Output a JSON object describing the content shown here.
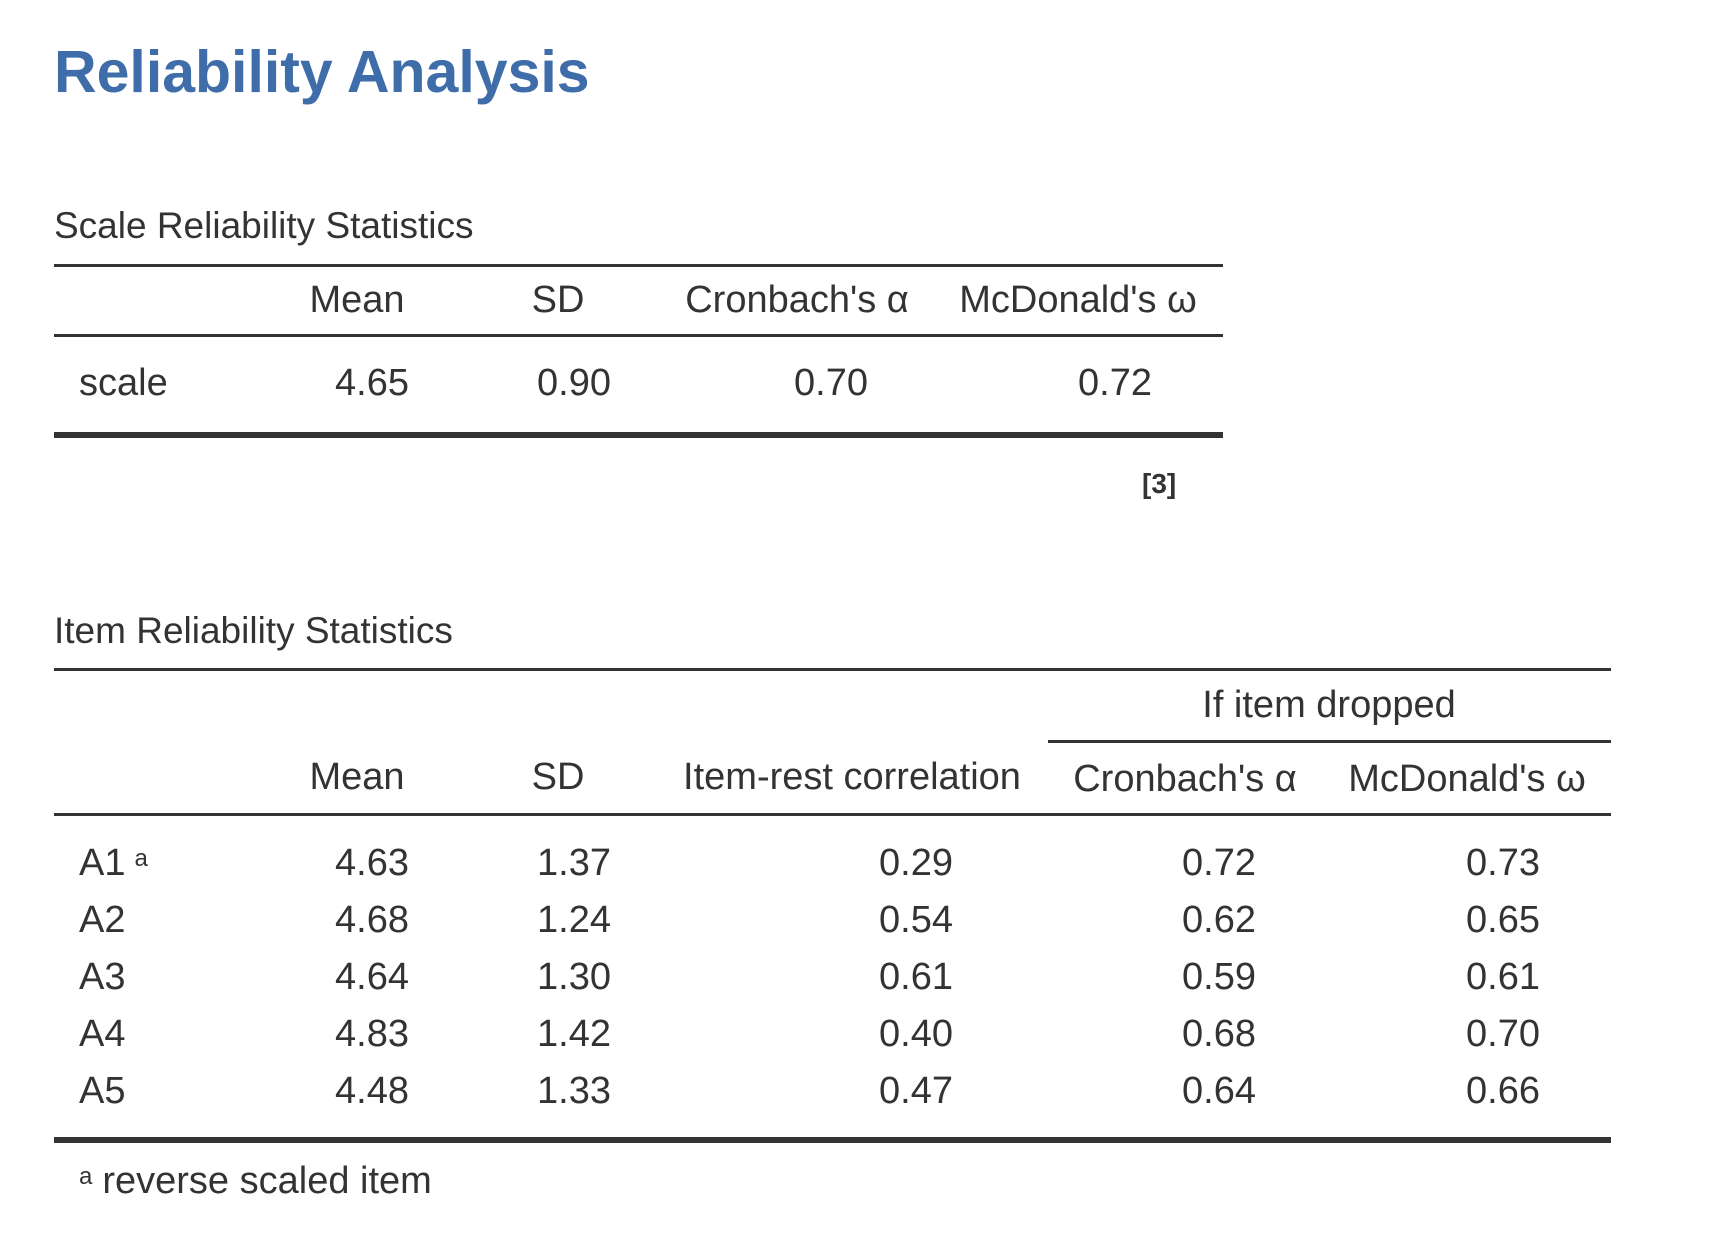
{
  "title": "Reliability Analysis",
  "scale_table": {
    "caption": "Scale Reliability Statistics",
    "headers": [
      "",
      "Mean",
      "SD",
      "Cronbach's α",
      "McDonald's ω"
    ],
    "row": {
      "label": "scale",
      "mean": "4.65",
      "sd": "0.90",
      "alpha": "0.70",
      "omega": "0.72"
    },
    "reference": "[3]"
  },
  "item_table": {
    "caption": "Item Reliability Statistics",
    "group_header": "If item dropped",
    "headers": [
      "",
      "Mean",
      "SD",
      "Item-rest correlation",
      "Cronbach's α",
      "McDonald's ω"
    ],
    "rows": [
      {
        "label": "A1",
        "note": "a",
        "mean": "4.63",
        "sd": "1.37",
        "irc": "0.29",
        "alpha": "0.72",
        "omega": "0.73"
      },
      {
        "label": "A2",
        "note": "",
        "mean": "4.68",
        "sd": "1.24",
        "irc": "0.54",
        "alpha": "0.62",
        "omega": "0.65"
      },
      {
        "label": "A3",
        "note": "",
        "mean": "4.64",
        "sd": "1.30",
        "irc": "0.61",
        "alpha": "0.59",
        "omega": "0.61"
      },
      {
        "label": "A4",
        "note": "",
        "mean": "4.83",
        "sd": "1.42",
        "irc": "0.40",
        "alpha": "0.68",
        "omega": "0.70"
      },
      {
        "label": "A5",
        "note": "",
        "mean": "4.48",
        "sd": "1.33",
        "irc": "0.47",
        "alpha": "0.64",
        "omega": "0.66"
      }
    ],
    "footnote": {
      "mark": "a",
      "text": "reverse scaled item"
    }
  }
}
